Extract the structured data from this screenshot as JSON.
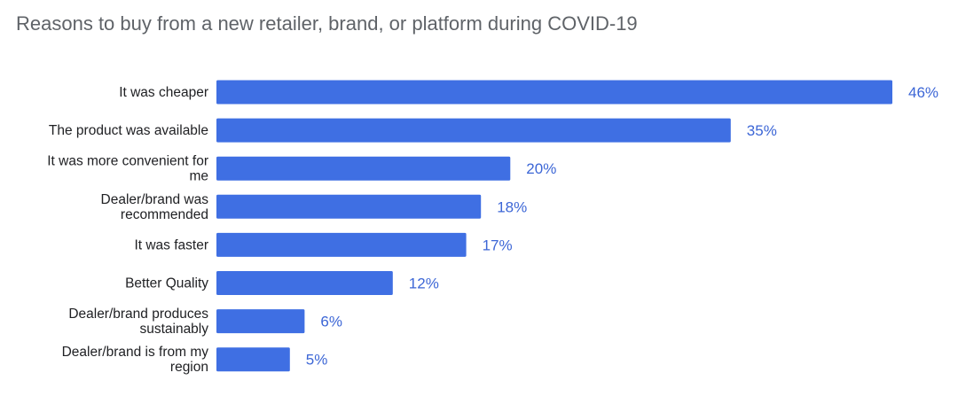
{
  "chart_data": {
    "type": "bar",
    "orientation": "horizontal",
    "title": "Reasons to buy from a new retailer, brand, or platform during COVID-19",
    "categories": [
      "It was cheaper",
      "The product was available",
      "It was more convenient for me",
      "Dealer/brand was recommended",
      "It was faster",
      "Better Quality",
      "Dealer/brand produces sustainably",
      "Dealer/brand is from my region"
    ],
    "category_lines": [
      [
        "It was cheaper"
      ],
      [
        "The product was available"
      ],
      [
        "It was more convenient for",
        "me"
      ],
      [
        "Dealer/brand was",
        "recommended"
      ],
      [
        "It was faster"
      ],
      [
        "Better Quality"
      ],
      [
        "Dealer/brand produces",
        "sustainably"
      ],
      [
        "Dealer/brand is from my",
        "region"
      ]
    ],
    "values": [
      46,
      35,
      20,
      18,
      17,
      12,
      6,
      5
    ],
    "value_labels": [
      "46%",
      "35%",
      "20%",
      "18%",
      "17%",
      "12%",
      "6%",
      "5%"
    ],
    "unit": "%",
    "xlim": [
      0,
      46
    ],
    "grid": false,
    "legend": "none",
    "bar_color": "#3f6fe3",
    "label_color": "#3c66d6"
  }
}
